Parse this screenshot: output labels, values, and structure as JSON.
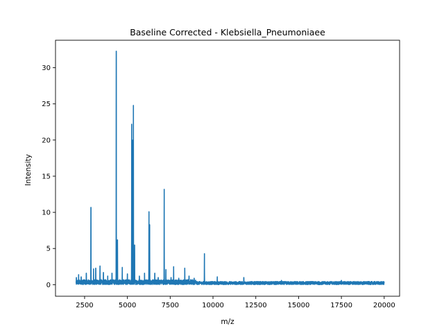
{
  "chart_data": {
    "type": "line",
    "title": "Baseline Corrected - Klebsiella_Pneumoniaee",
    "xlabel": "m/z",
    "ylabel": "Intensity",
    "xlim": [
      800,
      20900
    ],
    "ylim": [
      -1.6,
      33.8
    ],
    "x_ticks": [
      2500,
      5000,
      7500,
      10000,
      12500,
      15000,
      17500,
      20000
    ],
    "x_tick_labels": [
      "2500",
      "5000",
      "7500",
      "10000",
      "12500",
      "15000",
      "17500",
      "20000"
    ],
    "y_ticks": [
      0,
      5,
      10,
      15,
      20,
      25,
      30
    ],
    "y_tick_labels": [
      "0",
      "5",
      "10",
      "15",
      "20",
      "25",
      "30"
    ],
    "grid": false,
    "legend": "none",
    "x_range": [
      2000,
      20000
    ],
    "series": [
      {
        "color": "#1f77b4",
        "peaks": [
          {
            "x": 2020,
            "y": 1.0
          },
          {
            "x": 2150,
            "y": 1.4
          },
          {
            "x": 2300,
            "y": 1.1
          },
          {
            "x": 2600,
            "y": 1.6
          },
          {
            "x": 2870,
            "y": 10.7
          },
          {
            "x": 3020,
            "y": 2.2
          },
          {
            "x": 3150,
            "y": 2.3
          },
          {
            "x": 3400,
            "y": 2.6
          },
          {
            "x": 3600,
            "y": 1.7
          },
          {
            "x": 3850,
            "y": 1.2
          },
          {
            "x": 4100,
            "y": 1.6
          },
          {
            "x": 4350,
            "y": 32.3
          },
          {
            "x": 4420,
            "y": 6.2
          },
          {
            "x": 4700,
            "y": 2.4
          },
          {
            "x": 5000,
            "y": 1.5
          },
          {
            "x": 5250,
            "y": 22.2
          },
          {
            "x": 5300,
            "y": 20.0
          },
          {
            "x": 5350,
            "y": 24.8
          },
          {
            "x": 5420,
            "y": 5.5
          },
          {
            "x": 5700,
            "y": 1.2
          },
          {
            "x": 6000,
            "y": 1.6
          },
          {
            "x": 6260,
            "y": 10.1
          },
          {
            "x": 6300,
            "y": 8.3
          },
          {
            "x": 6600,
            "y": 1.6
          },
          {
            "x": 6800,
            "y": 1.0
          },
          {
            "x": 7150,
            "y": 13.2
          },
          {
            "x": 7250,
            "y": 2.1
          },
          {
            "x": 7550,
            "y": 1.0
          },
          {
            "x": 7700,
            "y": 2.5
          },
          {
            "x": 8000,
            "y": 0.9
          },
          {
            "x": 8350,
            "y": 2.3
          },
          {
            "x": 8600,
            "y": 1.2
          },
          {
            "x": 8900,
            "y": 0.9
          },
          {
            "x": 9500,
            "y": 4.3
          },
          {
            "x": 10250,
            "y": 1.1
          },
          {
            "x": 11800,
            "y": 1.0
          },
          {
            "x": 14000,
            "y": 0.6
          },
          {
            "x": 17500,
            "y": 0.6
          }
        ]
      }
    ]
  }
}
